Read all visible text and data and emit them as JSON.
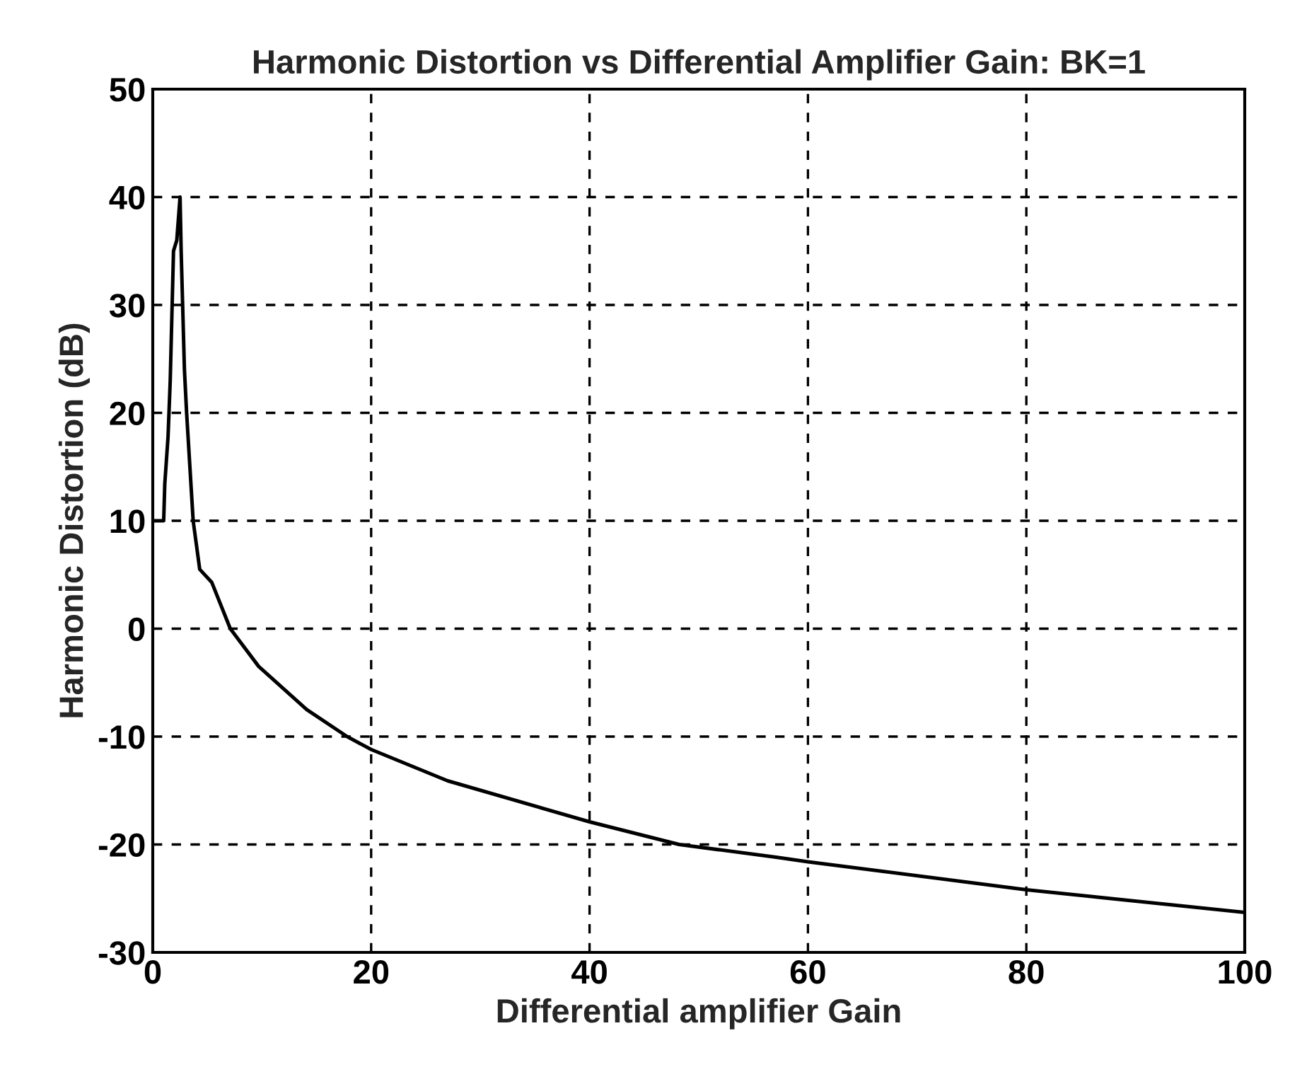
{
  "chart_data": {
    "type": "line",
    "title": "Harmonic Distortion vs Differential Amplifier Gain: BK=1",
    "xlabel": "Differential amplifier Gain",
    "ylabel": "Harmonic Distortion (dB)",
    "series": [
      {
        "color": "#000000",
        "x": [
          0,
          1,
          1.1,
          1.4,
          1.6,
          1.9,
          2.2,
          2.5,
          2.6,
          2.9,
          3.1,
          3.7,
          4.3,
          5.4,
          7.1,
          9.7,
          14.1,
          17.8,
          20,
          27,
          40,
          48.2,
          57.2,
          60,
          80,
          100
        ],
        "values": [
          10,
          10,
          13.4,
          17.8,
          23,
          35,
          36,
          40,
          35,
          24,
          20,
          10,
          5.5,
          4.3,
          0,
          -3.5,
          -7.5,
          -10,
          -11.2,
          -14.1,
          -17.9,
          -20,
          -21.2,
          -21.6,
          -24.2,
          -26.3
        ]
      }
    ],
    "xlim": [
      0,
      100
    ],
    "ylim": [
      -30,
      50
    ],
    "xticks": [
      0,
      20,
      40,
      60,
      80,
      100
    ],
    "yticks": [
      -30,
      -20,
      -10,
      0,
      10,
      20,
      30,
      40,
      50
    ],
    "grid": true,
    "line_style": "solid",
    "marker": "none"
  }
}
